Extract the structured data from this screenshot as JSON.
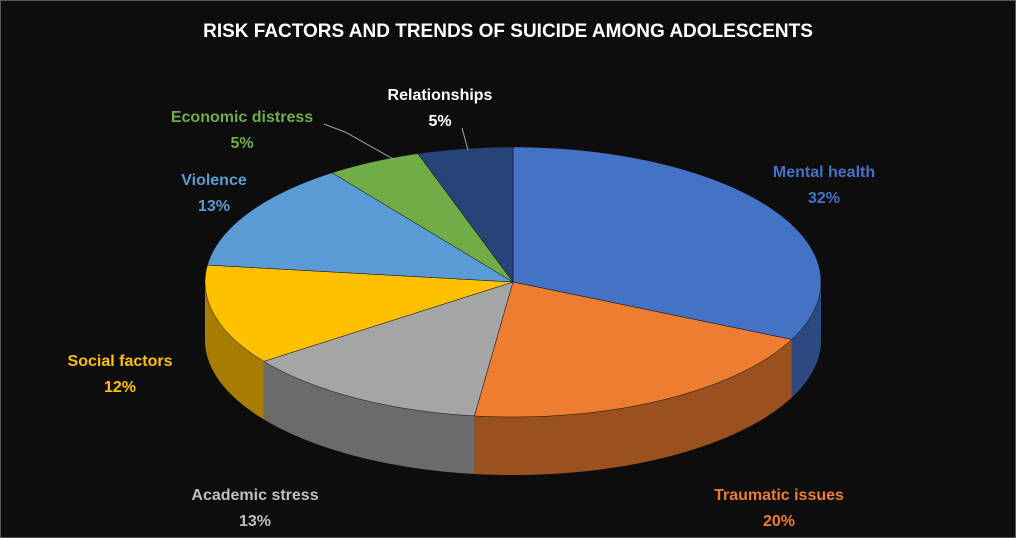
{
  "chart_data": {
    "type": "pie",
    "title": "RISK FACTORS AND  TRENDS OF SUICIDE AMONG ADOLESCENTS",
    "categories": [
      "Mental health",
      "Traumatic issues",
      "Academic stress",
      "Social factors",
      "Violence",
      "Economic distress",
      "Relationships"
    ],
    "values": [
      32,
      20,
      13,
      12,
      13,
      5,
      5
    ],
    "value_labels": [
      "32%",
      "20%",
      "13%",
      "12%",
      "13%",
      "5%",
      "5%"
    ],
    "colors": [
      "#4472c4",
      "#ed7d31",
      "#a5a5a5",
      "#ffc000",
      "#5b9bd5",
      "#70ad47",
      "#264478"
    ]
  }
}
